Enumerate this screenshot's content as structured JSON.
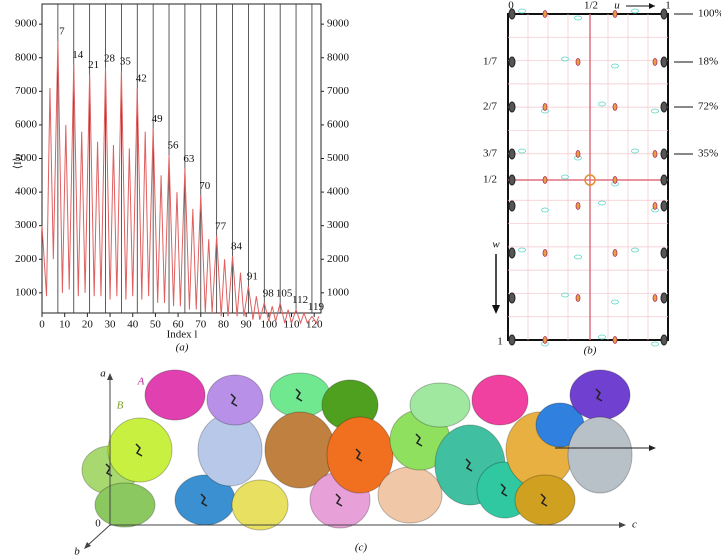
{
  "chart_data": {
    "type": "line",
    "y_label": "⟨I⟩",
    "y_label_subscript": "l",
    "x_label": "Index l",
    "caption": "(a)",
    "color": "#e06060",
    "x": [
      0,
      2,
      3.5,
      5,
      7,
      9,
      10.5,
      12,
      14,
      16,
      17.5,
      19,
      21,
      23,
      24.5,
      26,
      28,
      30,
      31.5,
      33,
      35,
      37,
      38.5,
      40,
      42,
      44,
      45.5,
      47,
      49,
      51,
      52.5,
      54,
      56,
      58,
      59.5,
      61,
      63,
      65,
      66.5,
      68,
      70,
      72,
      73.5,
      75,
      77,
      79,
      80.5,
      82,
      84,
      86,
      87.5,
      89,
      91,
      93,
      94.5,
      96,
      98,
      100,
      101.5,
      103,
      105,
      107,
      108.5,
      110,
      112,
      114,
      115.5,
      117,
      119,
      121,
      122
    ],
    "values": [
      3000,
      900,
      7100,
      2000,
      8500,
      1000,
      6000,
      1100,
      7800,
      900,
      5800,
      1000,
      7500,
      900,
      5500,
      900,
      7700,
      800,
      5400,
      900,
      7600,
      800,
      5300,
      900,
      7100,
      800,
      5800,
      900,
      5900,
      700,
      4500,
      700,
      5100,
      600,
      4000,
      600,
      4700,
      500,
      3500,
      500,
      3900,
      400,
      2600,
      400,
      2700,
      300,
      2000,
      300,
      2100,
      300,
      1600,
      300,
      1200,
      200,
      900,
      200,
      700,
      150,
      600,
      150,
      700,
      100,
      500,
      100,
      500,
      100,
      400,
      100,
      300,
      100,
      300
    ],
    "peak_labels": [
      7,
      14,
      21,
      28,
      35,
      42,
      49,
      56,
      63,
      70,
      77,
      84,
      91,
      98,
      105,
      112,
      119
    ],
    "xlim": [
      0,
      123
    ],
    "xticks": [
      0,
      10,
      20,
      30,
      40,
      50,
      60,
      70,
      80,
      90,
      100,
      110,
      120
    ],
    "ylim": [
      400,
      9600
    ],
    "yticks": [
      1000,
      2000,
      3000,
      4000,
      5000,
      6000,
      7000,
      8000,
      9000
    ],
    "y2lim": [
      400,
      9600
    ],
    "y2ticks": [
      1000,
      2000,
      3000,
      4000,
      5000,
      6000,
      7000,
      8000,
      9000
    ]
  },
  "patterson": {
    "u_labels": [
      "0",
      "1/2",
      "1"
    ],
    "u_axis": "u",
    "w_labels": [
      "1/7",
      "2/7",
      "3/7",
      "1/2",
      "1"
    ],
    "w_axis": "w",
    "peak_heights": [
      "100%",
      "18%",
      "72%",
      "35%"
    ],
    "caption": "(b)"
  },
  "structure": {
    "axes": [
      "a",
      "b",
      "c"
    ],
    "origin": "0",
    "molecules": [
      "A",
      "B"
    ],
    "caption": "(c)"
  }
}
